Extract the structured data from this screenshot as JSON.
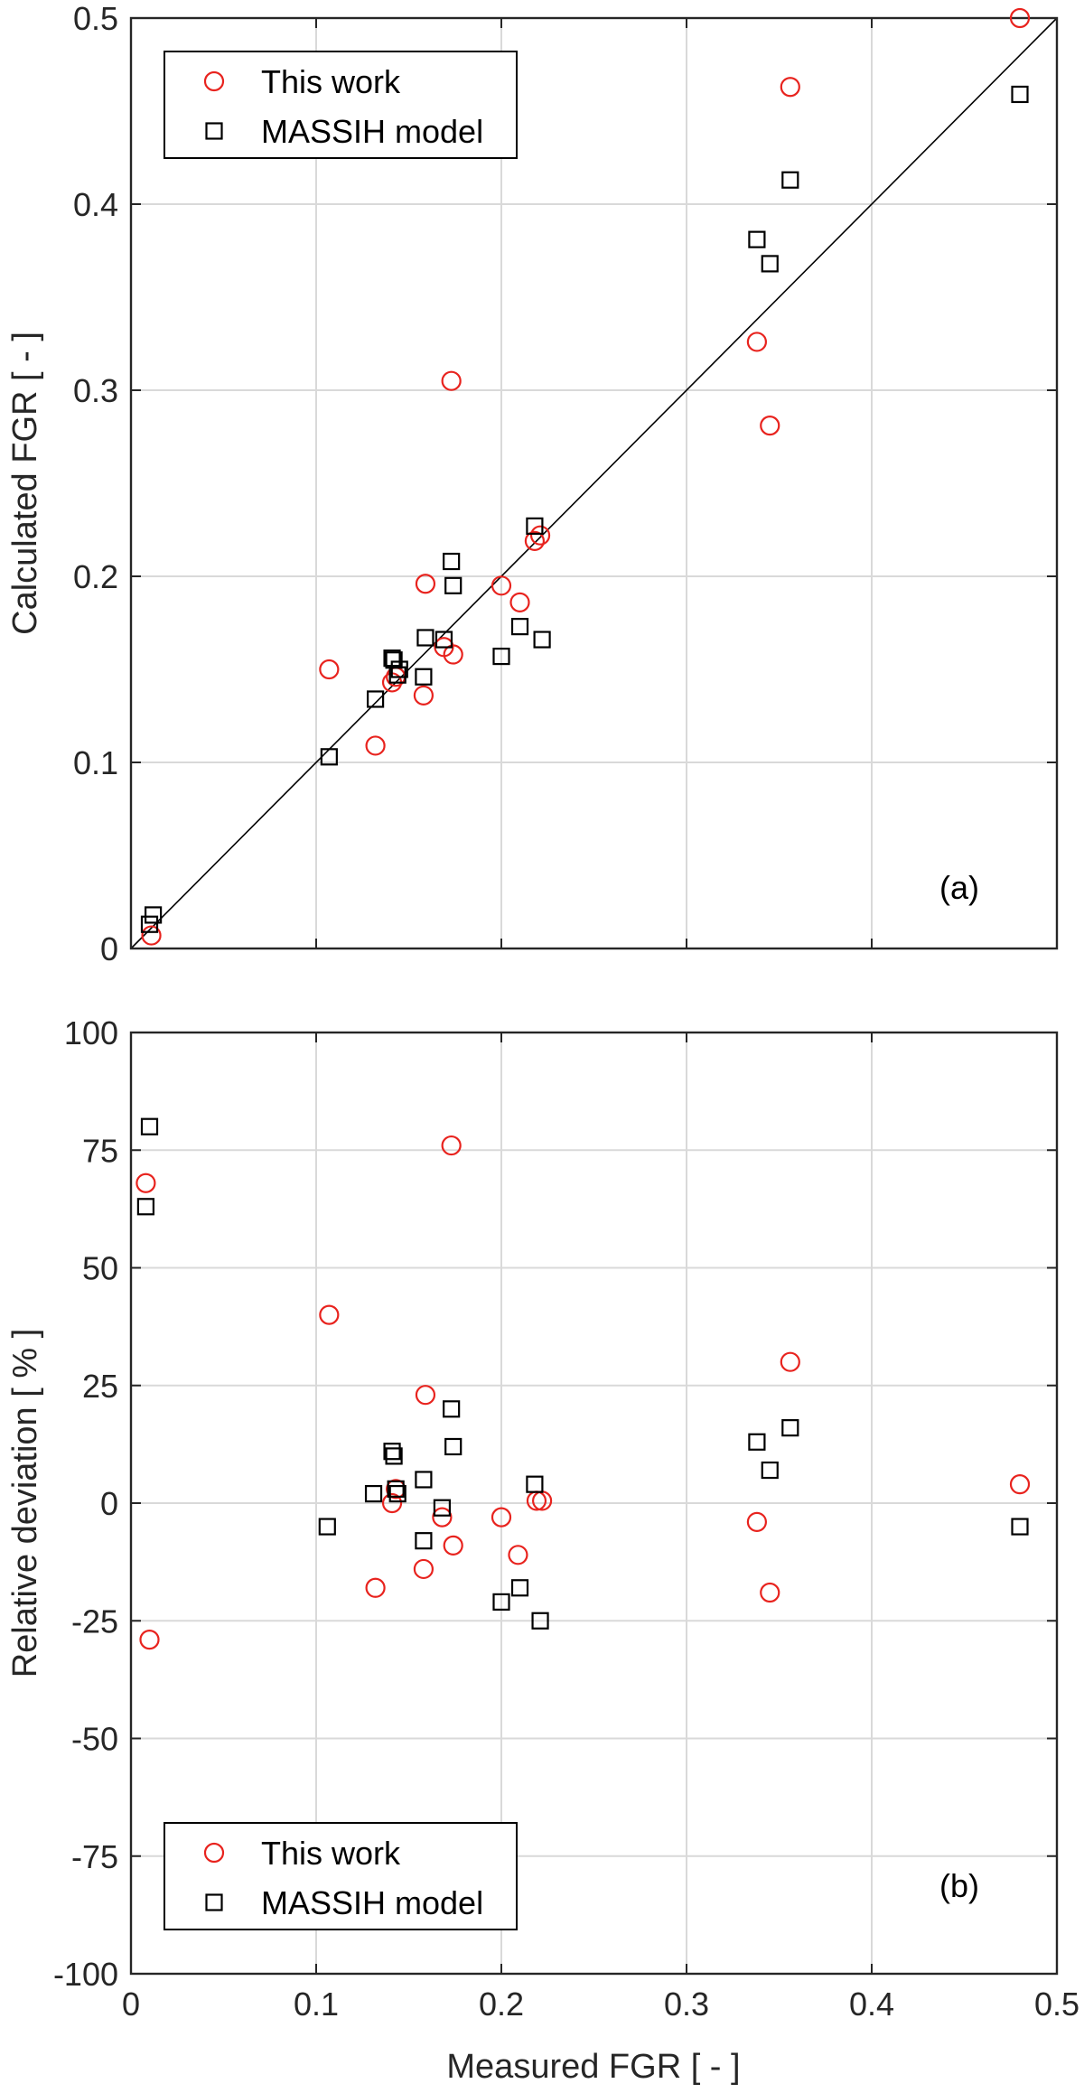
{
  "colors": {
    "this_work": "#e8231e",
    "massih": "#000000",
    "grid": "#d9d9d9",
    "axes": "#262626"
  },
  "xlabel": "Measured FGR [ - ]",
  "chart_data": [
    {
      "type": "scatter",
      "panel": "(a)",
      "xlim": [
        0,
        0.5
      ],
      "ylim": [
        0,
        0.5
      ],
      "xticks": [
        0,
        0.1,
        0.2,
        0.3,
        0.4,
        0.5
      ],
      "xticklabels": [
        "",
        "",
        "",
        "",
        "",
        ""
      ],
      "yticks": [
        0,
        0.1,
        0.2,
        0.3,
        0.4,
        0.5
      ],
      "yticklabels": [
        "0",
        "0.1",
        "0.2",
        "0.3",
        "0.4",
        "0.5"
      ],
      "xlabel": "",
      "ylabel": "Calculated FGR [ - ]",
      "grid": true,
      "legend": "top-left",
      "reference_line": "y = x",
      "series": [
        {
          "name": "This work",
          "marker": "circle",
          "color": "#e8231e",
          "points": [
            [
              0.011,
              0.007
            ],
            [
              0.107,
              0.15
            ],
            [
              0.132,
              0.109
            ],
            [
              0.141,
              0.143
            ],
            [
              0.143,
              0.146
            ],
            [
              0.158,
              0.136
            ],
            [
              0.159,
              0.196
            ],
            [
              0.169,
              0.162
            ],
            [
              0.173,
              0.305
            ],
            [
              0.174,
              0.158
            ],
            [
              0.2,
              0.195
            ],
            [
              0.21,
              0.186
            ],
            [
              0.218,
              0.219
            ],
            [
              0.221,
              0.222
            ],
            [
              0.338,
              0.326
            ],
            [
              0.345,
              0.281
            ],
            [
              0.356,
              0.463
            ],
            [
              0.48,
              0.5
            ]
          ]
        },
        {
          "name": "MASSIH model",
          "marker": "square",
          "color": "#000000",
          "points": [
            [
              0.01,
              0.013
            ],
            [
              0.012,
              0.018
            ],
            [
              0.107,
              0.103
            ],
            [
              0.132,
              0.134
            ],
            [
              0.141,
              0.156
            ],
            [
              0.142,
              0.155
            ],
            [
              0.144,
              0.147
            ],
            [
              0.145,
              0.15
            ],
            [
              0.158,
              0.146
            ],
            [
              0.159,
              0.167
            ],
            [
              0.169,
              0.166
            ],
            [
              0.173,
              0.208
            ],
            [
              0.174,
              0.195
            ],
            [
              0.2,
              0.157
            ],
            [
              0.21,
              0.173
            ],
            [
              0.218,
              0.227
            ],
            [
              0.222,
              0.166
            ],
            [
              0.338,
              0.381
            ],
            [
              0.345,
              0.368
            ],
            [
              0.356,
              0.413
            ],
            [
              0.48,
              0.459
            ]
          ]
        }
      ]
    },
    {
      "type": "scatter",
      "panel": "(b)",
      "xlim": [
        0,
        0.5
      ],
      "ylim": [
        -100,
        100
      ],
      "xticks": [
        0,
        0.1,
        0.2,
        0.3,
        0.4,
        0.5
      ],
      "xticklabels": [
        "0",
        "0.1",
        "0.2",
        "0.3",
        "0.4",
        "0.5"
      ],
      "yticks": [
        -100,
        -75,
        -50,
        -25,
        0,
        25,
        50,
        75,
        100
      ],
      "yticklabels": [
        "-100",
        "-75",
        "-50",
        "-25",
        "0",
        "25",
        "50",
        "75",
        "100"
      ],
      "xlabel": "Measured FGR [ - ]",
      "ylabel": "Relative deviation [ % ]",
      "grid": true,
      "legend": "bottom-left",
      "series": [
        {
          "name": "This work",
          "marker": "circle",
          "color": "#e8231e",
          "points": [
            [
              0.008,
              68
            ],
            [
              0.01,
              -29
            ],
            [
              0.107,
              40
            ],
            [
              0.132,
              -18
            ],
            [
              0.141,
              0
            ],
            [
              0.143,
              3
            ],
            [
              0.158,
              -14
            ],
            [
              0.159,
              23
            ],
            [
              0.168,
              -3
            ],
            [
              0.173,
              76
            ],
            [
              0.174,
              -9
            ],
            [
              0.2,
              -3
            ],
            [
              0.209,
              -11
            ],
            [
              0.219,
              0.5
            ],
            [
              0.222,
              0.5
            ],
            [
              0.338,
              -4
            ],
            [
              0.345,
              -19
            ],
            [
              0.356,
              30
            ],
            [
              0.48,
              4
            ]
          ]
        },
        {
          "name": "MASSIH model",
          "marker": "square",
          "color": "#000000",
          "points": [
            [
              0.008,
              63
            ],
            [
              0.01,
              80
            ],
            [
              0.106,
              -5
            ],
            [
              0.131,
              2
            ],
            [
              0.141,
              11
            ],
            [
              0.142,
              10
            ],
            [
              0.143,
              3
            ],
            [
              0.144,
              2
            ],
            [
              0.158,
              -8
            ],
            [
              0.158,
              5
            ],
            [
              0.168,
              -1
            ],
            [
              0.173,
              20
            ],
            [
              0.174,
              12
            ],
            [
              0.2,
              -21
            ],
            [
              0.21,
              -18
            ],
            [
              0.218,
              4
            ],
            [
              0.221,
              -25
            ],
            [
              0.338,
              13
            ],
            [
              0.345,
              7
            ],
            [
              0.356,
              16
            ],
            [
              0.48,
              -5
            ]
          ]
        }
      ]
    }
  ]
}
